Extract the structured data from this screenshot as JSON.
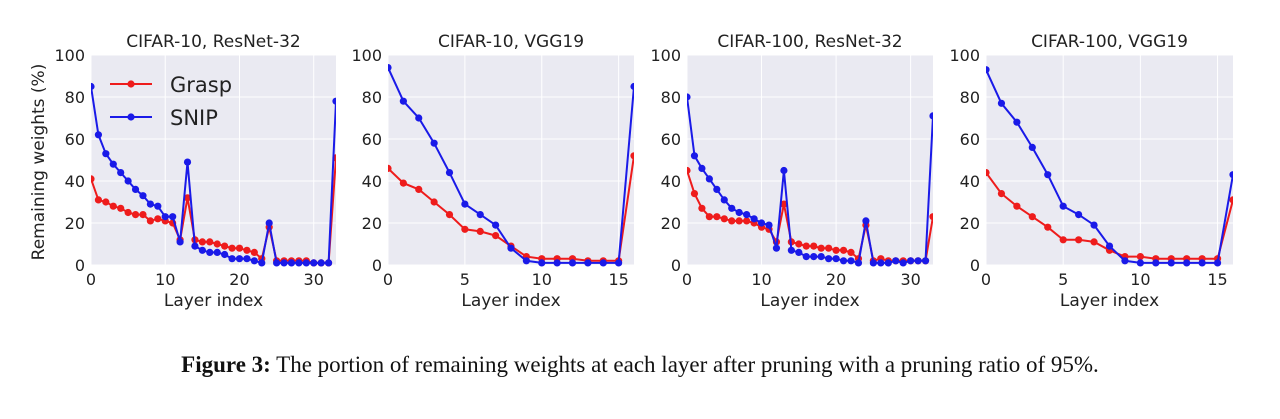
{
  "caption": {
    "label": "Figure 3:",
    "text": "The portion of remaining weights at each layer after pruning with a pruning ratio of 95%."
  },
  "colors": {
    "grasp": "#ee1c1c",
    "snip": "#1a1ae8",
    "panel_bg": "#eaeaf2",
    "grid": "#ffffff"
  },
  "chart_data": [
    {
      "type": "line",
      "title": "CIFAR-10, ResNet-32",
      "xlabel": "Layer index",
      "ylabel": "Remaining weights (%)",
      "xlim": [
        0,
        33
      ],
      "ylim": [
        0,
        100
      ],
      "xticks": [
        0,
        10,
        20,
        30
      ],
      "yticks": [
        0,
        20,
        40,
        60,
        80,
        100
      ],
      "legend": "top-left",
      "grid": true,
      "series": [
        {
          "name": "Grasp",
          "x": [
            0,
            1,
            2,
            3,
            4,
            5,
            6,
            7,
            8,
            9,
            10,
            11,
            12,
            13,
            14,
            15,
            16,
            17,
            18,
            19,
            20,
            21,
            22,
            23,
            24,
            25,
            26,
            27,
            28,
            29,
            30,
            31,
            32,
            33
          ],
          "values": [
            41,
            31,
            30,
            28,
            27,
            25,
            24,
            24,
            21,
            22,
            21,
            20,
            12,
            32,
            12,
            11,
            11,
            10,
            9,
            8,
            8,
            7,
            6,
            3,
            18,
            2,
            2,
            2,
            2,
            2,
            1,
            1,
            1,
            51
          ]
        },
        {
          "name": "SNIP",
          "x": [
            0,
            1,
            2,
            3,
            4,
            5,
            6,
            7,
            8,
            9,
            10,
            11,
            12,
            13,
            14,
            15,
            16,
            17,
            18,
            19,
            20,
            21,
            22,
            23,
            24,
            25,
            26,
            27,
            28,
            29,
            30,
            31,
            32,
            33
          ],
          "values": [
            85,
            62,
            53,
            48,
            44,
            40,
            36,
            33,
            29,
            28,
            23,
            23,
            11,
            49,
            9,
            7,
            6,
            6,
            5,
            3,
            3,
            3,
            2,
            1,
            20,
            1,
            1,
            1,
            1,
            1,
            1,
            1,
            1,
            78
          ]
        }
      ]
    },
    {
      "type": "line",
      "title": "CIFAR-10, VGG19",
      "xlabel": "Layer index",
      "ylabel": "",
      "xlim": [
        0,
        16
      ],
      "ylim": [
        0,
        100
      ],
      "xticks": [
        0,
        5,
        10,
        15
      ],
      "yticks": [
        0,
        20,
        40,
        60,
        80,
        100
      ],
      "grid": true,
      "series": [
        {
          "name": "Grasp",
          "x": [
            0,
            1,
            2,
            3,
            4,
            5,
            6,
            7,
            8,
            9,
            10,
            11,
            12,
            13,
            14,
            15,
            16
          ],
          "values": [
            46,
            39,
            36,
            30,
            24,
            17,
            16,
            14,
            9,
            4,
            3,
            3,
            3,
            2,
            2,
            2,
            52
          ]
        },
        {
          "name": "SNIP",
          "x": [
            0,
            1,
            2,
            3,
            4,
            5,
            6,
            7,
            8,
            9,
            10,
            11,
            12,
            13,
            14,
            15,
            16
          ],
          "values": [
            94,
            78,
            70,
            58,
            44,
            29,
            24,
            19,
            8,
            2,
            1,
            1,
            1,
            1,
            1,
            1,
            85
          ]
        }
      ]
    },
    {
      "type": "line",
      "title": "CIFAR-100, ResNet-32",
      "xlabel": "Layer index",
      "ylabel": "",
      "xlim": [
        0,
        33
      ],
      "ylim": [
        0,
        100
      ],
      "xticks": [
        0,
        10,
        20,
        30
      ],
      "yticks": [
        0,
        20,
        40,
        60,
        80,
        100
      ],
      "grid": true,
      "series": [
        {
          "name": "Grasp",
          "x": [
            0,
            1,
            2,
            3,
            4,
            5,
            6,
            7,
            8,
            9,
            10,
            11,
            12,
            13,
            14,
            15,
            16,
            17,
            18,
            19,
            20,
            21,
            22,
            23,
            24,
            25,
            26,
            27,
            28,
            29,
            30,
            31,
            32,
            33
          ],
          "values": [
            45,
            34,
            27,
            23,
            23,
            22,
            21,
            21,
            21,
            20,
            18,
            17,
            11,
            29,
            11,
            10,
            9,
            9,
            8,
            8,
            7,
            7,
            6,
            3,
            19,
            2,
            3,
            2,
            2,
            2,
            2,
            2,
            2,
            23
          ]
        },
        {
          "name": "SNIP",
          "x": [
            0,
            1,
            2,
            3,
            4,
            5,
            6,
            7,
            8,
            9,
            10,
            11,
            12,
            13,
            14,
            15,
            16,
            17,
            18,
            19,
            20,
            21,
            22,
            23,
            24,
            25,
            26,
            27,
            28,
            29,
            30,
            31,
            32,
            33
          ],
          "values": [
            80,
            52,
            46,
            41,
            36,
            31,
            27,
            25,
            24,
            22,
            20,
            19,
            8,
            45,
            7,
            6,
            4,
            4,
            4,
            3,
            3,
            2,
            2,
            1,
            21,
            1,
            1,
            1,
            2,
            1,
            2,
            2,
            2,
            71
          ]
        }
      ]
    },
    {
      "type": "line",
      "title": "CIFAR-100, VGG19",
      "xlabel": "Layer index",
      "ylabel": "",
      "xlim": [
        0,
        16
      ],
      "ylim": [
        0,
        100
      ],
      "xticks": [
        0,
        5,
        10,
        15
      ],
      "yticks": [
        0,
        20,
        40,
        60,
        80,
        100
      ],
      "grid": true,
      "series": [
        {
          "name": "Grasp",
          "x": [
            0,
            1,
            2,
            3,
            4,
            5,
            6,
            7,
            8,
            9,
            10,
            11,
            12,
            13,
            14,
            15,
            16
          ],
          "values": [
            44,
            34,
            28,
            23,
            18,
            12,
            12,
            11,
            7,
            4,
            4,
            3,
            3,
            3,
            3,
            3,
            31
          ]
        },
        {
          "name": "SNIP",
          "x": [
            0,
            1,
            2,
            3,
            4,
            5,
            6,
            7,
            8,
            9,
            10,
            11,
            12,
            13,
            14,
            15,
            16
          ],
          "values": [
            93,
            77,
            68,
            56,
            43,
            28,
            24,
            19,
            9,
            2,
            1,
            1,
            1,
            1,
            1,
            1,
            43
          ]
        }
      ]
    }
  ]
}
